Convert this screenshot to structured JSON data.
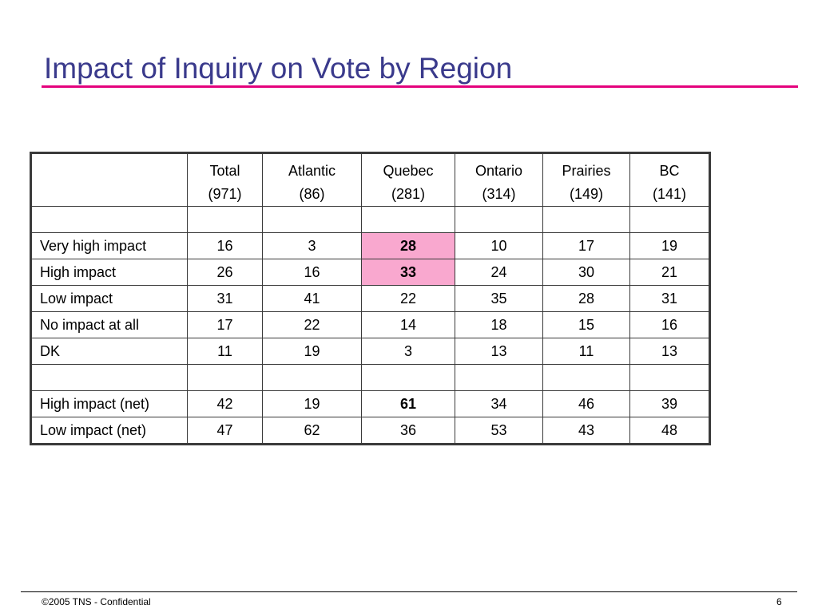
{
  "slide": {
    "title": "Impact of Inquiry on Vote by Region",
    "title_color": "#3a3a8c",
    "rule_color": "#e4007c"
  },
  "table": {
    "columns": [
      {
        "name": "Total",
        "base": "(971)"
      },
      {
        "name": "Atlantic",
        "base": "(86)"
      },
      {
        "name": "Quebec",
        "base": "(281)"
      },
      {
        "name": "Ontario",
        "base": "(314)"
      },
      {
        "name": "Prairies",
        "base": "(149)"
      },
      {
        "name": "BC",
        "base": "(141)"
      }
    ],
    "highlight_color": "#f9a8cf",
    "rows": [
      {
        "label": "Very high impact",
        "values": [
          "16",
          "3",
          "28",
          "10",
          "17",
          "19"
        ],
        "emphasis": {
          "quebec": "bold-highlighted"
        }
      },
      {
        "label": "High impact",
        "values": [
          "26",
          "16",
          "33",
          "24",
          "30",
          "21"
        ],
        "emphasis": {
          "quebec": "bold-highlighted"
        }
      },
      {
        "label": "Low impact",
        "values": [
          "31",
          "41",
          "22",
          "35",
          "28",
          "31"
        ]
      },
      {
        "label": "No impact at all",
        "values": [
          "17",
          "22",
          "14",
          "18",
          "15",
          "16"
        ]
      },
      {
        "label": "DK",
        "values": [
          "11",
          "19",
          "3",
          "13",
          "11",
          "13"
        ]
      }
    ],
    "net_rows": [
      {
        "label": "High impact (net)",
        "values": [
          "42",
          "19",
          "61",
          "34",
          "46",
          "39"
        ],
        "emphasis": {
          "quebec": "bold"
        }
      },
      {
        "label": "Low impact (net)",
        "values": [
          "47",
          "62",
          "36",
          "53",
          "43",
          "48"
        ]
      }
    ]
  },
  "footer": {
    "copyright": "©2005 TNS - Confidential",
    "page_number": "6"
  }
}
